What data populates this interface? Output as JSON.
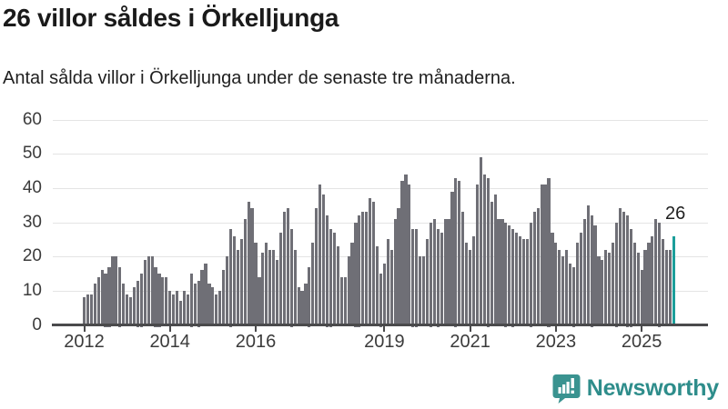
{
  "header": {
    "title": "26 villor såldes i Örkelljunga",
    "subtitle": "Antal sålda villor i Örkelljunga under de senaste tre månaderna."
  },
  "chart_data": {
    "type": "bar",
    "title": "26 villor såldes i Örkelljunga",
    "subtitle": "Antal sålda villor i Örkelljunga under de senaste tre månaderna.",
    "frequency": "monthly",
    "start_year": 2012,
    "values": [
      8,
      9,
      9,
      12,
      14,
      16,
      15,
      17,
      20,
      20,
      17,
      12,
      9,
      8,
      11,
      13,
      15,
      19,
      20,
      20,
      17,
      15,
      14,
      14,
      10,
      9,
      10,
      7,
      10,
      9,
      15,
      12,
      13,
      16,
      18,
      12,
      11,
      9,
      10,
      16,
      20,
      28,
      26,
      22,
      25,
      31,
      36,
      34,
      24,
      14,
      21,
      24,
      22,
      22,
      19,
      27,
      33,
      34,
      28,
      22,
      11,
      10,
      12,
      17,
      24,
      34,
      41,
      38,
      32,
      28,
      27,
      23,
      14,
      14,
      20,
      24,
      30,
      32,
      33,
      33,
      37,
      36,
      23,
      15,
      18,
      25,
      22,
      31,
      34,
      42,
      44,
      41,
      28,
      28,
      20,
      20,
      25,
      30,
      31,
      28,
      27,
      31,
      31,
      39,
      43,
      42,
      33,
      24,
      22,
      26,
      41,
      49,
      44,
      43,
      36,
      38,
      31,
      31,
      30,
      29,
      28,
      27,
      26,
      25,
      25,
      30,
      33,
      34,
      41,
      41,
      43,
      27,
      24,
      22,
      20,
      22,
      18,
      17,
      24,
      27,
      31,
      35,
      32,
      29,
      20,
      19,
      22,
      21,
      24,
      30,
      34,
      33,
      32,
      28,
      24,
      21,
      16,
      22,
      24,
      26,
      31,
      30,
      25,
      22,
      22,
      26
    ],
    "ylim": [
      0,
      60
    ],
    "y_ticks": [
      0,
      10,
      20,
      30,
      40,
      50,
      60
    ],
    "x_tick_years": [
      2012,
      2014,
      2016,
      2019,
      2021,
      2023,
      2025
    ],
    "grid": "horizontal",
    "legend": "none",
    "bar_color": "#6f6f76",
    "highlight_color": "#1b9e9a",
    "gridline_color": "#e4e4e4",
    "axis_color": "#4a4a4c",
    "highlight": {
      "index": 165,
      "value": 26,
      "label": "26"
    }
  },
  "footer": {
    "brand": "Newsworthy",
    "brand_color": "#2e8d8b",
    "icon_color": "#3a9390",
    "logo_icon": "newsworthy-chart-bubble-icon"
  }
}
